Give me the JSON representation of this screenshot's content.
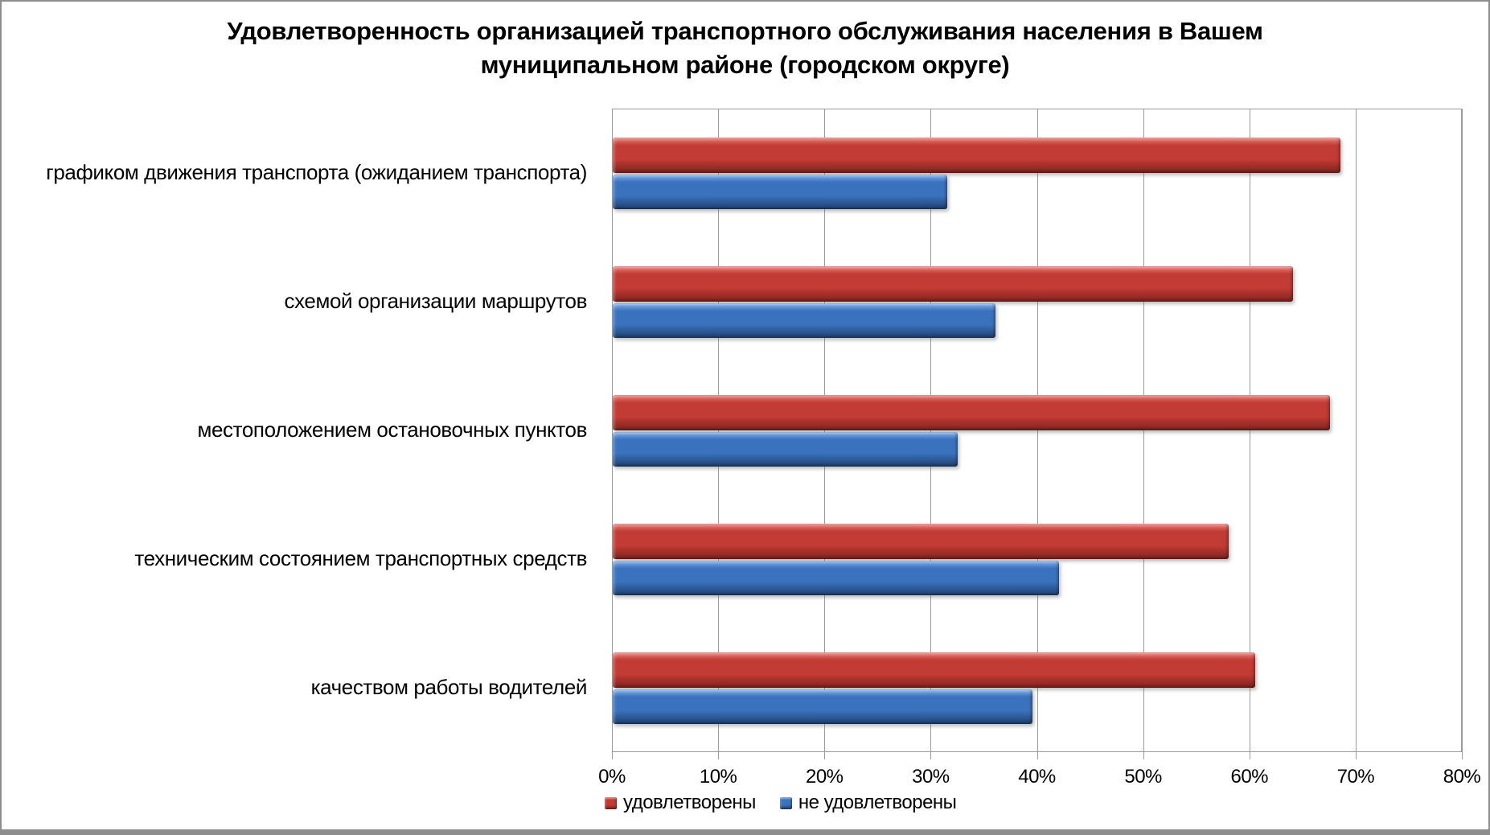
{
  "window": {
    "background": "#ffffff",
    "frame_border_color": "#8d8d8d",
    "gridline_color": "#9b9b9b",
    "text_color": "#000000"
  },
  "chart_data": {
    "type": "bar",
    "orientation": "horizontal",
    "title": "Удовлетворенность организацией транспортного обслуживания населения в Вашем муниципальном районе (городском округе)",
    "title_lines": [
      "Удовлетворенность организацией транспортного обслуживания населения в Вашем",
      "муниципальном районе (городском округе)"
    ],
    "categories": [
      "графиком движения транспорта (ожиданием транспорта)",
      "схемой организации маршрутов",
      "местоположением остановочных пунктов",
      "техническим состоянием транспортных средств",
      "качеством работы водителей"
    ],
    "series": [
      {
        "name": "удовлетворены",
        "color": "#c23b34",
        "color_light": "#ee827d",
        "color_dark": "#7e221e",
        "values": [
          68.5,
          64,
          67.5,
          58,
          60.5
        ]
      },
      {
        "name": "не удовлетворены",
        "color": "#3a72bd",
        "color_light": "#85b1ee",
        "color_dark": "#20406e",
        "values": [
          31.5,
          36,
          32.5,
          42,
          39.5
        ]
      }
    ],
    "x_axis": {
      "min": 0,
      "max": 80,
      "unit": "%",
      "ticks": [
        "0%",
        "10%",
        "20%",
        "30%",
        "40%",
        "50%",
        "60%",
        "70%",
        "80%"
      ]
    },
    "grid": true,
    "legend_position": "bottom"
  }
}
